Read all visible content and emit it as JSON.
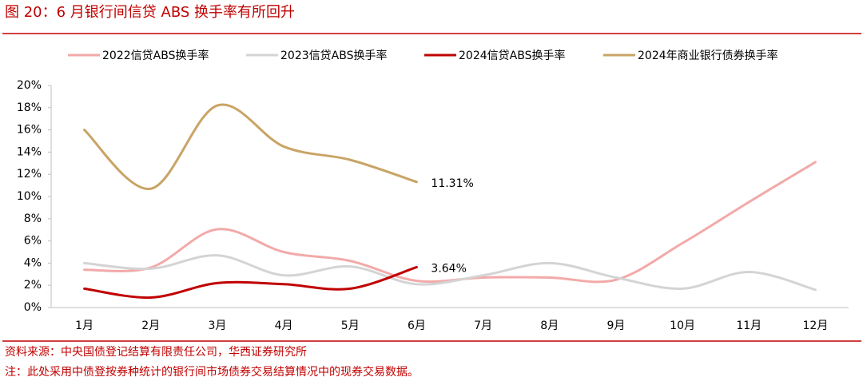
{
  "chart_data": {
    "type": "line",
    "title": "图 20：6 月银行间信贷 ABS 换手率有所回升",
    "categories": [
      "1月",
      "2月",
      "3月",
      "4月",
      "5月",
      "6月",
      "7月",
      "8月",
      "9月",
      "10月",
      "11月",
      "12月"
    ],
    "series": [
      {
        "name": "2022信贷ABS换手率",
        "color": "#f2aaa9",
        "values": [
          3.4,
          3.6,
          7.05,
          5.0,
          4.2,
          2.4,
          2.7,
          2.7,
          2.5,
          5.8,
          9.5,
          13.1
        ]
      },
      {
        "name": "2023信贷ABS换手率",
        "color": "#d4d4d4",
        "values": [
          4.0,
          3.5,
          4.7,
          2.9,
          3.7,
          2.1,
          2.9,
          4.0,
          2.7,
          1.7,
          3.2,
          1.6
        ]
      },
      {
        "name": "2024信贷ABS换手率",
        "color": "#c00000",
        "values": [
          1.7,
          0.9,
          2.2,
          2.1,
          1.7,
          3.64,
          null,
          null,
          null,
          null,
          null,
          null
        ],
        "value_labels": [
          null,
          null,
          null,
          null,
          null,
          "3.64%",
          null,
          null,
          null,
          null,
          null,
          null
        ]
      },
      {
        "name": "2024年商业银行债券换手率",
        "color": "#c9a465",
        "values": [
          16.0,
          10.7,
          18.2,
          14.5,
          13.3,
          11.31,
          null,
          null,
          null,
          null,
          null,
          null
        ],
        "value_labels": [
          null,
          null,
          null,
          null,
          null,
          "11.31%",
          null,
          null,
          null,
          null,
          null,
          null
        ]
      }
    ],
    "ylim": [
      0,
      20
    ],
    "yticks": [
      {
        "value": 0,
        "label": "0%"
      },
      {
        "value": 2,
        "label": "2%"
      },
      {
        "value": 4,
        "label": "4%"
      },
      {
        "value": 6,
        "label": "6%"
      },
      {
        "value": 8,
        "label": "8%"
      },
      {
        "value": 10,
        "label": "10%"
      },
      {
        "value": 12,
        "label": "12%"
      },
      {
        "value": 14,
        "label": "14%"
      },
      {
        "value": 16,
        "label": "16%"
      },
      {
        "value": 18,
        "label": "18%"
      },
      {
        "value": 20,
        "label": "20%"
      }
    ],
    "grid": false,
    "legend": "top",
    "source": "资料来源：中央国债登记结算有限责任公司，华西证券研究所",
    "note": "注：此处采用中债登按券种统计的银行间市场债券交易结算情况中的现券交易数据。"
  }
}
